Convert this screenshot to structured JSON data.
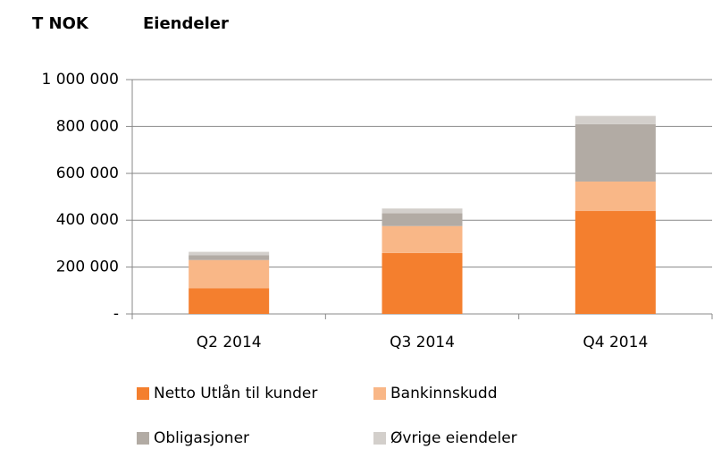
{
  "chart_data": {
    "type": "stacked_bar",
    "title": "Eiendeler",
    "y_label": "T NOK",
    "categories": [
      "Q2 2014",
      "Q3 2014",
      "Q4 2014"
    ],
    "series": [
      {
        "name": "Netto Utlån til kunder",
        "color": "#f47f2e",
        "values": [
          110000,
          260000,
          440000
        ]
      },
      {
        "name": "Bankinnskudd",
        "color": "#f9b787",
        "values": [
          120000,
          115000,
          125000
        ]
      },
      {
        "name": "Obligasjoner",
        "color": "#b2aba4",
        "values": [
          20000,
          55000,
          245000
        ]
      },
      {
        "name": "Øvrige eiendeler",
        "color": "#d3cfcb",
        "values": [
          15000,
          20000,
          35000
        ]
      }
    ],
    "ylim": [
      0,
      1000000
    ],
    "yticks": [
      {
        "value": 0,
        "label": "-"
      },
      {
        "value": 200000,
        "label": "200 000"
      },
      {
        "value": 400000,
        "label": "400 000"
      },
      {
        "value": 600000,
        "label": "600 000"
      },
      {
        "value": 800000,
        "label": "800 000"
      },
      {
        "value": 1000000,
        "label": "1 000 000"
      }
    ],
    "grid": true
  }
}
